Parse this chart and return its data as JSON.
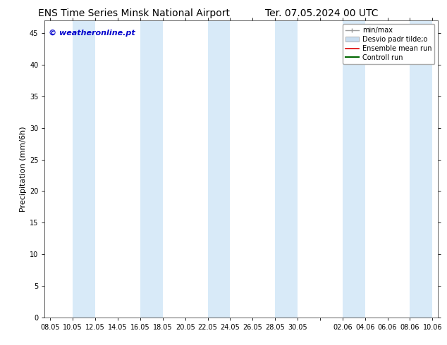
{
  "title_left": "ENS Time Series Minsk National Airport",
  "title_right": "Ter. 07.05.2024 00 UTC",
  "ylabel": "Precipitation (mm/6h)",
  "watermark": "© weatheronline.pt",
  "watermark_color": "#0000cc",
  "ylim": [
    0,
    47.0
  ],
  "yticks": [
    0,
    5,
    10,
    15,
    20,
    25,
    30,
    35,
    40,
    45
  ],
  "xtick_labels": [
    "08.05",
    "10.05",
    "12.05",
    "14.05",
    "16.05",
    "18.05",
    "20.05",
    "22.05",
    "24.05",
    "26.05",
    "28.05",
    "30.05",
    "",
    "02.06",
    "04.06",
    "06.06",
    "08.06",
    "10.06"
  ],
  "n_xticks": 18,
  "shade_indices": [
    3,
    9,
    15,
    21,
    27,
    33
  ],
  "shade_color": "#d8eaf8",
  "shade_edge_color": "#c0d8f0",
  "bg_color": "#ffffff",
  "plot_bg_color": "#ffffff",
  "grid_color": "#e0e0e0",
  "legend_minmax_color": "#999999",
  "legend_desvio_color": "#c8ddf0",
  "legend_ensemble_color": "#dd0000",
  "legend_control_color": "#006600",
  "title_fontsize": 10,
  "ylabel_fontsize": 8,
  "tick_fontsize": 7,
  "legend_fontsize": 7,
  "watermark_fontsize": 8
}
